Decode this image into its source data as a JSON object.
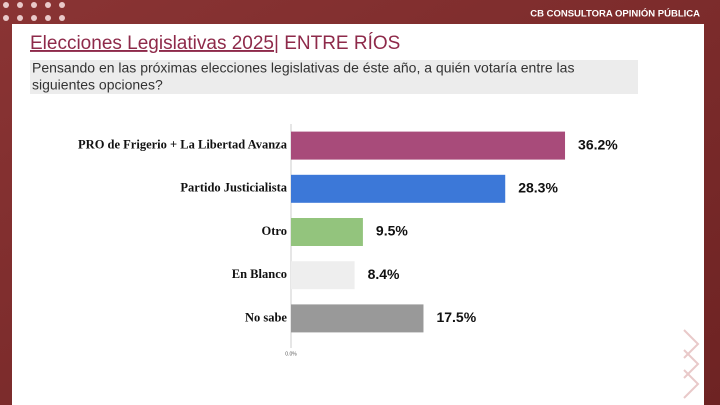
{
  "brand": "CB CONSULTORA OPINIÓN PÚBLICA",
  "chart_data": {
    "type": "barh",
    "title": "Elecciones Legislativas 2025",
    "title_suffix": "| ENTRE RÍOS",
    "subtitle": [
      "Pensando en las próximas elecciones legislativas de éste año, a quién votaría entre las",
      "siguientes opciones?"
    ],
    "categories": [
      "PRO de Frigerio + La Libertad Avanza",
      "Partido Justicialista",
      "Otro",
      "En Blanco",
      "No sabe"
    ],
    "values": [
      36.2,
      28.3,
      9.5,
      8.4,
      17.5
    ],
    "value_labels": [
      "36.2%",
      "28.3%",
      "9.5%",
      "8.4%",
      "17.5%"
    ],
    "colors": [
      "#a84b7a",
      "#3c78d8",
      "#93c47d",
      "#eeeeee",
      "#999999"
    ],
    "xlim": [
      0,
      50
    ],
    "xticks": [
      {
        "value": 0,
        "label": "0.0%"
      }
    ]
  }
}
